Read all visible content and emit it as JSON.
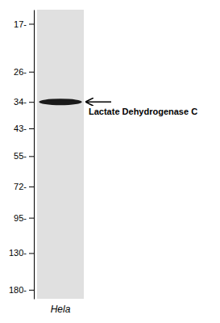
{
  "chart_data": {
    "type": "blot",
    "categories": [
      "Hela"
    ],
    "values": [
      34
    ],
    "color": "#1a1a1a",
    "log": "y",
    "ylim": [
      195,
      15
    ],
    "yticks": [
      {
        "value": 180,
        "label": "180-"
      },
      {
        "value": 130,
        "label": "130-"
      },
      {
        "value": 95,
        "label": "95-"
      },
      {
        "value": 72,
        "label": "72-"
      },
      {
        "value": 55,
        "label": "55-"
      },
      {
        "value": 43,
        "label": "43-"
      },
      {
        "value": 34,
        "label": "34-"
      },
      {
        "value": 26,
        "label": "26-"
      },
      {
        "value": 17,
        "label": "17-"
      }
    ],
    "annotations": [
      {
        "text": "Lactate Dehydrogenase C",
        "value": 34
      }
    ]
  }
}
